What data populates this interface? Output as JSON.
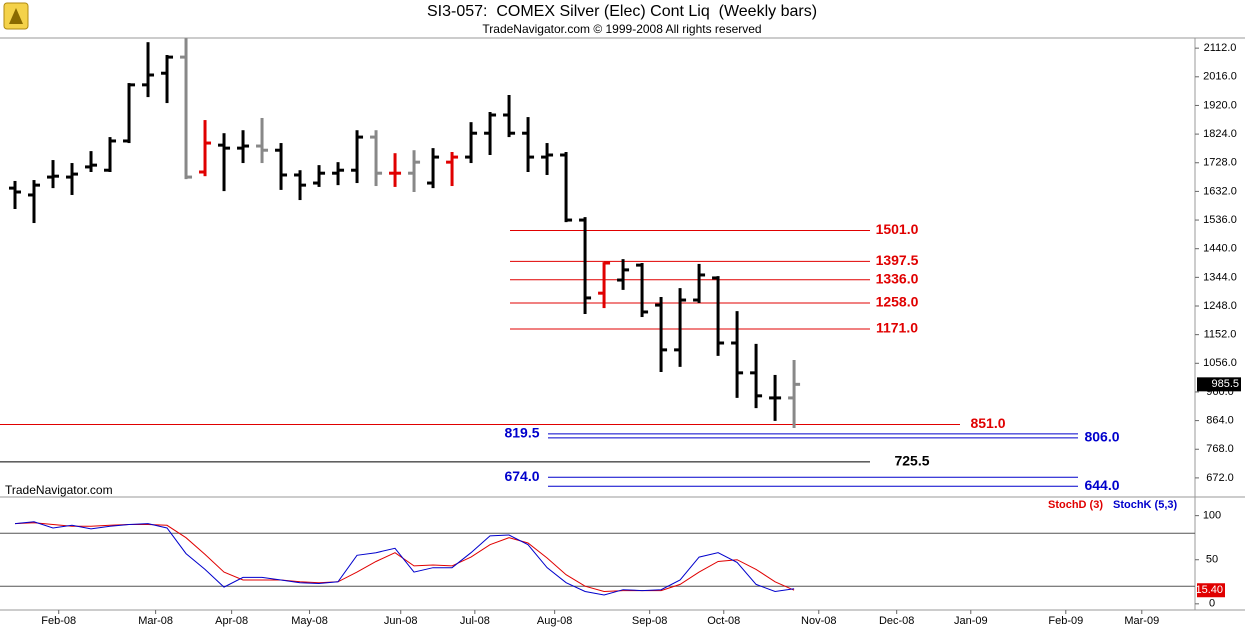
{
  "chart_data": [
    {
      "type": "ohlc",
      "title": "SI3-057:  COMEX Silver (Elec) Cont Liq  (Weekly bars)",
      "subtitle": "TradeNavigator.com © 1999-2008 All rights reserved",
      "watermark": "TradeNavigator.com",
      "open": [
        1643,
        1620,
        1680,
        1680,
        1714,
        1703,
        1801,
        1989,
        2028,
        2082,
        1697,
        1787,
        1777,
        1784,
        1770,
        1687,
        1660,
        1693,
        1703,
        1814,
        1693,
        1693,
        1660,
        1730,
        1747,
        1827,
        1888,
        1827,
        1747,
        1754,
        1536,
        1291,
        1335,
        1385,
        1251,
        1101,
        1268,
        1342,
        1124,
        1024,
        940,
        940
      ],
      "high": [
        1667,
        1670,
        1737,
        1727,
        1767,
        1814,
        1995,
        2132,
        2089,
        2145,
        1871,
        1827,
        1837,
        1878,
        1794,
        1703,
        1720,
        1730,
        1837,
        1837,
        1760,
        1770,
        1777,
        1764,
        1864,
        1898,
        1955,
        1881,
        1794,
        1764,
        1546,
        1395,
        1405,
        1392,
        1278,
        1308,
        1389,
        1348,
        1231,
        1121,
        1017,
        1067
      ],
      "low": [
        1573,
        1526,
        1643,
        1620,
        1697,
        1697,
        1794,
        1948,
        1928,
        1673,
        1683,
        1633,
        1727,
        1727,
        1637,
        1603,
        1647,
        1653,
        1660,
        1650,
        1647,
        1630,
        1643,
        1650,
        1727,
        1754,
        1814,
        1697,
        1687,
        1529,
        1221,
        1241,
        1302,
        1211,
        1027,
        1044,
        1258,
        1081,
        940,
        906,
        863,
        839
      ],
      "close": [
        1630,
        1653,
        1683,
        1690,
        1720,
        1801,
        1989,
        2022,
        2082,
        1680,
        1794,
        1777,
        1784,
        1770,
        1687,
        1653,
        1693,
        1703,
        1814,
        1693,
        1693,
        1730,
        1747,
        1747,
        1827,
        1888,
        1827,
        1747,
        1754,
        1536,
        1275,
        1392,
        1369,
        1228,
        1101,
        1268,
        1352,
        1124,
        1024,
        947,
        940,
        985.5
      ],
      "colors": [
        "#000000",
        "#000000",
        "#000000",
        "#000000",
        "#000000",
        "#000000",
        "#000000",
        "#000000",
        "#000000",
        "#888888",
        "#e00000",
        "#000000",
        "#000000",
        "#888888",
        "#000000",
        "#000000",
        "#000000",
        "#000000",
        "#000000",
        "#888888",
        "#e00000",
        "#888888",
        "#000000",
        "#e00000",
        "#000000",
        "#000000",
        "#000000",
        "#000000",
        "#000000",
        "#000000",
        "#000000",
        "#e00000",
        "#000000",
        "#000000",
        "#000000",
        "#000000",
        "#000000",
        "#000000",
        "#000000",
        "#000000",
        "#000000",
        "#888888"
      ],
      "last_label": "985.5",
      "xlim": [
        -0.79,
        62.1
      ],
      "ylim": [
        608,
        2146
      ],
      "yticks": [
        {
          "value": 672,
          "label": "672.0"
        },
        {
          "value": 768,
          "label": "768.0"
        },
        {
          "value": 864,
          "label": "864.0"
        },
        {
          "value": 960,
          "label": "960.0"
        },
        {
          "value": 1056,
          "label": "1056.0"
        },
        {
          "value": 1152,
          "label": "1152.0"
        },
        {
          "value": 1248,
          "label": "1248.0"
        },
        {
          "value": 1344,
          "label": "1344.0"
        },
        {
          "value": 1440,
          "label": "1440.0"
        },
        {
          "value": 1536,
          "label": "1536.0"
        },
        {
          "value": 1632,
          "label": "1632.0"
        },
        {
          "value": 1728,
          "label": "1728.0"
        },
        {
          "value": 1824,
          "label": "1824.0"
        },
        {
          "value": 1920,
          "label": "1920.0"
        },
        {
          "value": 2016,
          "label": "2016.0"
        },
        {
          "value": 2112,
          "label": "2112.0"
        }
      ],
      "levels": [
        {
          "value": 1501,
          "label": "1501.0",
          "color": "#e00000"
        },
        {
          "value": 1397.5,
          "label": "1397.5",
          "color": "#e00000"
        },
        {
          "value": 1336,
          "label": "1336.0",
          "color": "#e00000"
        },
        {
          "value": 1258,
          "label": "1258.0",
          "color": "#e00000"
        },
        {
          "value": 1171,
          "label": "1171.0",
          "color": "#e00000"
        },
        {
          "value": 851,
          "label": "851.0",
          "color": "#e00000"
        },
        {
          "value": 819.5,
          "label": "819.5",
          "color": "#0000cc"
        },
        {
          "value": 806,
          "label": "806.0",
          "color": "#0000cc"
        },
        {
          "value": 725.5,
          "label": "725.5",
          "color": "#000000"
        },
        {
          "value": 674,
          "label": "674.0",
          "color": "#0000cc"
        },
        {
          "value": 644,
          "label": "644.0",
          "color": "#0000cc"
        }
      ]
    },
    {
      "type": "line",
      "series": [
        {
          "name": "StochD (3)",
          "color": "#e00000",
          "values": [
            91,
            92,
            90,
            88,
            88,
            89,
            90,
            90,
            89,
            75,
            56,
            36,
            27,
            27,
            27,
            25,
            24,
            25,
            36,
            48,
            58,
            43,
            44,
            43,
            53,
            67,
            75,
            69,
            52,
            33,
            20,
            14,
            15,
            15,
            15,
            22,
            36,
            48,
            50,
            39,
            25,
            15.4
          ]
        },
        {
          "name": "StochK (5,3)",
          "color": "#0000cc",
          "values": [
            91,
            93,
            86,
            89,
            85,
            88,
            90,
            91,
            86,
            57,
            39,
            19,
            30,
            30,
            27,
            24,
            23,
            25,
            55,
            58,
            63,
            36,
            41,
            41,
            58,
            77,
            78,
            67,
            41,
            24,
            14,
            10,
            16,
            15,
            16,
            27,
            53,
            58,
            47,
            22,
            14,
            17
          ]
        }
      ],
      "last_label": "15.40",
      "legend": "top-right",
      "ref_lines": [
        80,
        20
      ],
      "xlim": [
        -0.79,
        62.1
      ],
      "xticks": [
        {
          "value": 2.3,
          "label": "Feb-08"
        },
        {
          "value": 7.4,
          "label": "Mar-08"
        },
        {
          "value": 11.4,
          "label": "Apr-08"
        },
        {
          "value": 15.5,
          "label": "May-08"
        },
        {
          "value": 20.3,
          "label": "Jun-08"
        },
        {
          "value": 24.2,
          "label": "Jul-08"
        },
        {
          "value": 28.4,
          "label": "Aug-08"
        },
        {
          "value": 33.4,
          "label": "Sep-08"
        },
        {
          "value": 37.3,
          "label": "Oct-08"
        },
        {
          "value": 42.3,
          "label": "Nov-08"
        },
        {
          "value": 46.4,
          "label": "Dec-08"
        },
        {
          "value": 50.3,
          "label": "Jan-09"
        },
        {
          "value": 55.3,
          "label": "Feb-09"
        },
        {
          "value": 59.3,
          "label": "Mar-09"
        }
      ],
      "ylim": [
        -7,
        120
      ],
      "yticks": [
        0,
        50,
        100
      ]
    }
  ]
}
